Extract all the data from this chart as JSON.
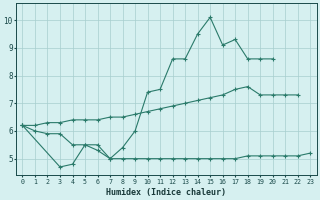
{
  "line1_x": [
    0,
    1,
    2,
    3,
    4,
    5,
    6,
    7,
    8,
    9,
    10,
    11,
    12,
    13,
    14,
    15,
    16,
    17,
    18,
    19,
    20
  ],
  "line1_y": [
    6.2,
    6.0,
    5.9,
    5.9,
    5.5,
    5.5,
    5.3,
    5.0,
    5.4,
    6.0,
    7.4,
    7.5,
    8.6,
    8.6,
    9.5,
    10.1,
    9.1,
    9.3,
    8.6,
    8.6,
    8.6
  ],
  "line2_x": [
    0,
    1,
    2,
    3,
    4,
    5,
    6,
    7,
    8,
    9,
    10,
    11,
    12,
    13,
    14,
    15,
    16,
    17,
    18,
    19,
    20,
    21,
    22
  ],
  "line2_y": [
    6.2,
    6.2,
    6.3,
    6.3,
    6.4,
    6.4,
    6.4,
    6.5,
    6.5,
    6.6,
    6.7,
    6.8,
    6.9,
    7.0,
    7.1,
    7.2,
    7.3,
    7.5,
    7.6,
    7.3,
    7.3,
    7.3,
    7.3
  ],
  "line3_x": [
    0,
    3,
    4,
    5,
    6,
    7,
    8,
    9,
    10,
    11,
    12,
    13,
    14,
    15,
    16,
    17,
    18,
    19,
    20,
    21,
    22,
    23
  ],
  "line3_y": [
    6.2,
    4.7,
    4.8,
    5.5,
    5.5,
    5.0,
    5.0,
    5.0,
    5.0,
    5.0,
    5.0,
    5.0,
    5.0,
    5.0,
    5.0,
    5.0,
    5.1,
    5.1,
    5.1,
    5.1,
    5.1,
    5.2
  ],
  "color": "#2a7a6a",
  "bg_color": "#d6f0f0",
  "grid_color": "#a8cece",
  "xlabel": "Humidex (Indice chaleur)",
  "ylim": [
    4.4,
    10.6
  ],
  "xlim": [
    -0.5,
    23.5
  ],
  "yticks": [
    5,
    6,
    7,
    8,
    9,
    10
  ],
  "xticks": [
    0,
    1,
    2,
    3,
    4,
    5,
    6,
    7,
    8,
    9,
    10,
    11,
    12,
    13,
    14,
    15,
    16,
    17,
    18,
    19,
    20,
    21,
    22,
    23
  ]
}
